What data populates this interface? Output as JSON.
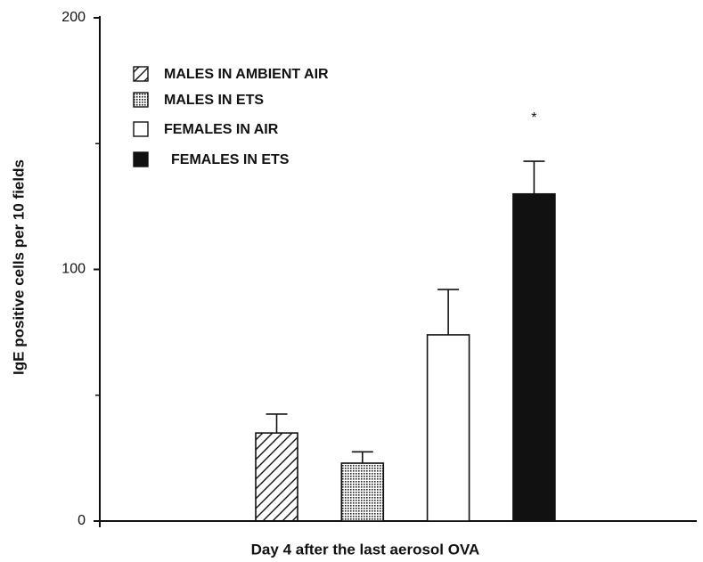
{
  "chart_data": {
    "type": "bar",
    "xlabel": "Day 4 after the last aerosol OVA",
    "ylabel": "IgE positive cells per 10 fields",
    "ylim": [
      0,
      200
    ],
    "yticks": [
      0,
      100,
      200
    ],
    "yminorticks": [
      50,
      150
    ],
    "series": [
      {
        "name": "MALES IN AMBIENT AIR",
        "color": "#ffffff",
        "pattern": "hatch",
        "values": [
          35
        ],
        "errors": [
          7.5
        ]
      },
      {
        "name": "MALES IN ETS",
        "color": "#ffffff",
        "pattern": "dots",
        "values": [
          23
        ],
        "errors": [
          4.5
        ]
      },
      {
        "name": "FEMALES IN AIR",
        "color": "#ffffff",
        "pattern": "none",
        "values": [
          74
        ],
        "errors": [
          18
        ]
      },
      {
        "name": "FEMALES IN ETS",
        "color": "#111111",
        "pattern": "none",
        "values": [
          130
        ],
        "errors": [
          13
        ],
        "annotation": "*"
      }
    ]
  }
}
